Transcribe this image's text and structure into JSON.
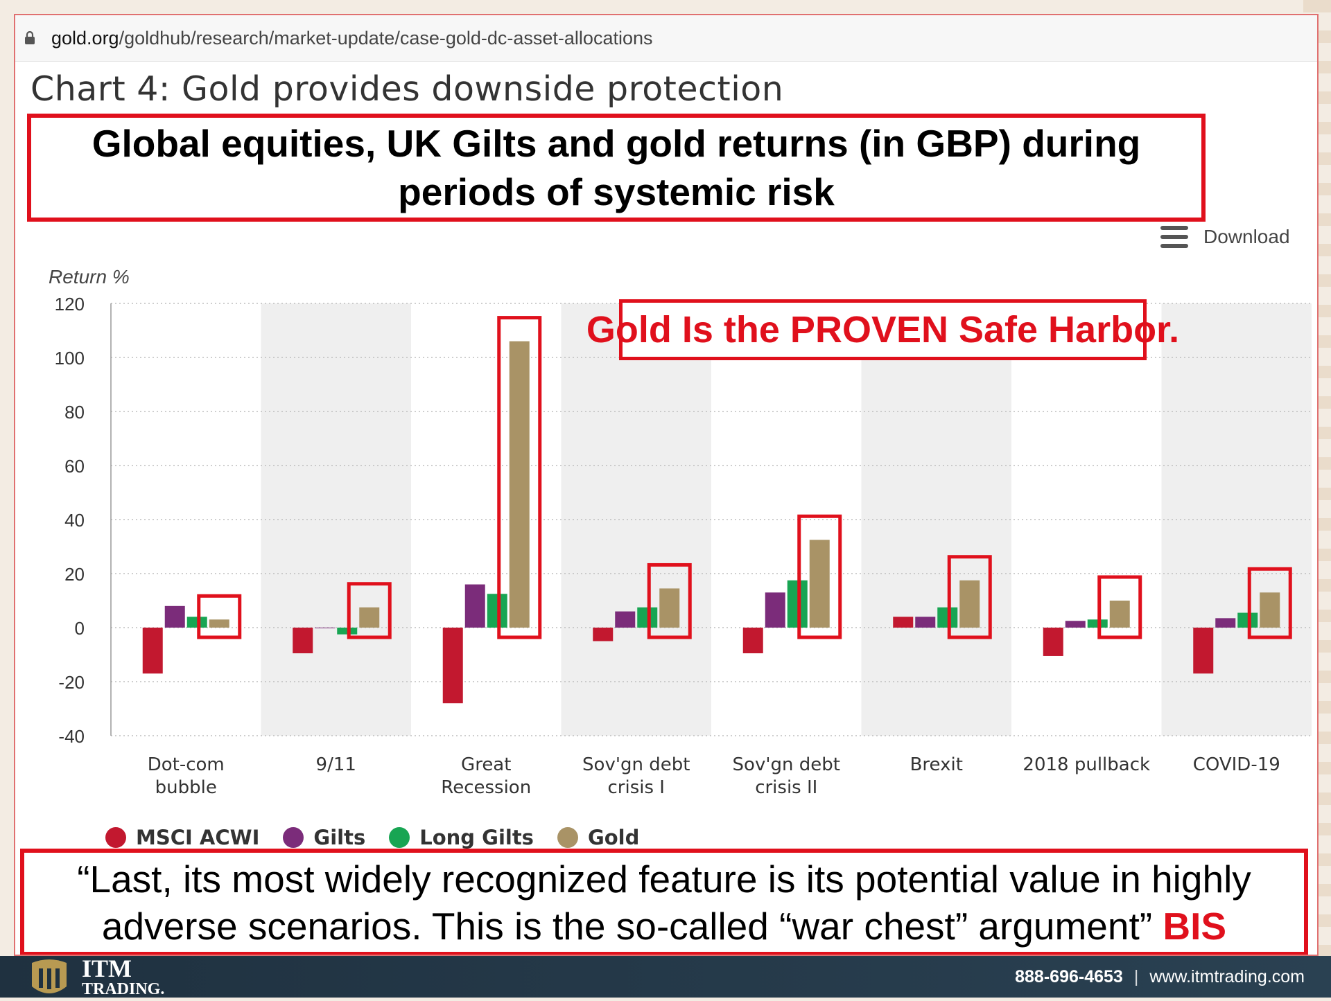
{
  "browser": {
    "url_domain": "gold.org",
    "url_path": "/goldhub/research/market-update/case-gold-dc-asset-allocations"
  },
  "page_heading": "Chart 4: Gold provides downside protection",
  "download_label": "Download",
  "overlay_callout": "Gold Is the PROVEN Safe Harbor.",
  "quote": {
    "text": "“Last, its most widely recognized feature is its potential value in highly adverse scenarios. This is the so-called “war chest” argument”",
    "source": "BIS"
  },
  "footer": {
    "logo_top": "ITM",
    "logo_bottom": "TRADING.",
    "phone": "888-696-4653",
    "separator": "|",
    "website": "www.itmtrading.com"
  },
  "colors": {
    "MSCI ACWI": "#c2182f",
    "Gilts": "#7b2c7a",
    "Long Gilts": "#18a553",
    "Gold": "#a99366",
    "highlight": "#e0101c"
  },
  "chart_data": {
    "type": "bar",
    "title": "Global equities, UK Gilts and gold returns (in GBP) during periods of systemic risk",
    "ylabel": "Return %",
    "xlabel": "",
    "ylim": [
      -40,
      120
    ],
    "yticks": [
      120,
      100,
      80,
      60,
      40,
      20,
      0,
      -20,
      -40
    ],
    "grid": true,
    "legend_position": "bottom-left",
    "categories": [
      [
        "Dot-com",
        "bubble"
      ],
      [
        "9/11"
      ],
      [
        "Great",
        "Recession"
      ],
      [
        "Sov'gn debt",
        "crisis I"
      ],
      [
        "Sov'gn debt",
        "crisis II"
      ],
      [
        "Brexit"
      ],
      [
        "2018 pullback"
      ],
      [
        "COVID-19"
      ]
    ],
    "series": [
      {
        "name": "MSCI ACWI",
        "values": [
          -17,
          -9.5,
          -28,
          -5,
          -9.5,
          4,
          -10.5,
          -17
        ]
      },
      {
        "name": "Gilts",
        "values": [
          8,
          0,
          16,
          6,
          13,
          4,
          2.5,
          3.5
        ]
      },
      {
        "name": "Long Gilts",
        "values": [
          4,
          -2.5,
          12.5,
          7.5,
          17.5,
          7.5,
          3,
          5.5
        ]
      },
      {
        "name": "Gold",
        "values": [
          3,
          7.5,
          106,
          14.5,
          32.5,
          17.5,
          10,
          13
        ]
      }
    ],
    "highlighted_series": "Gold"
  }
}
